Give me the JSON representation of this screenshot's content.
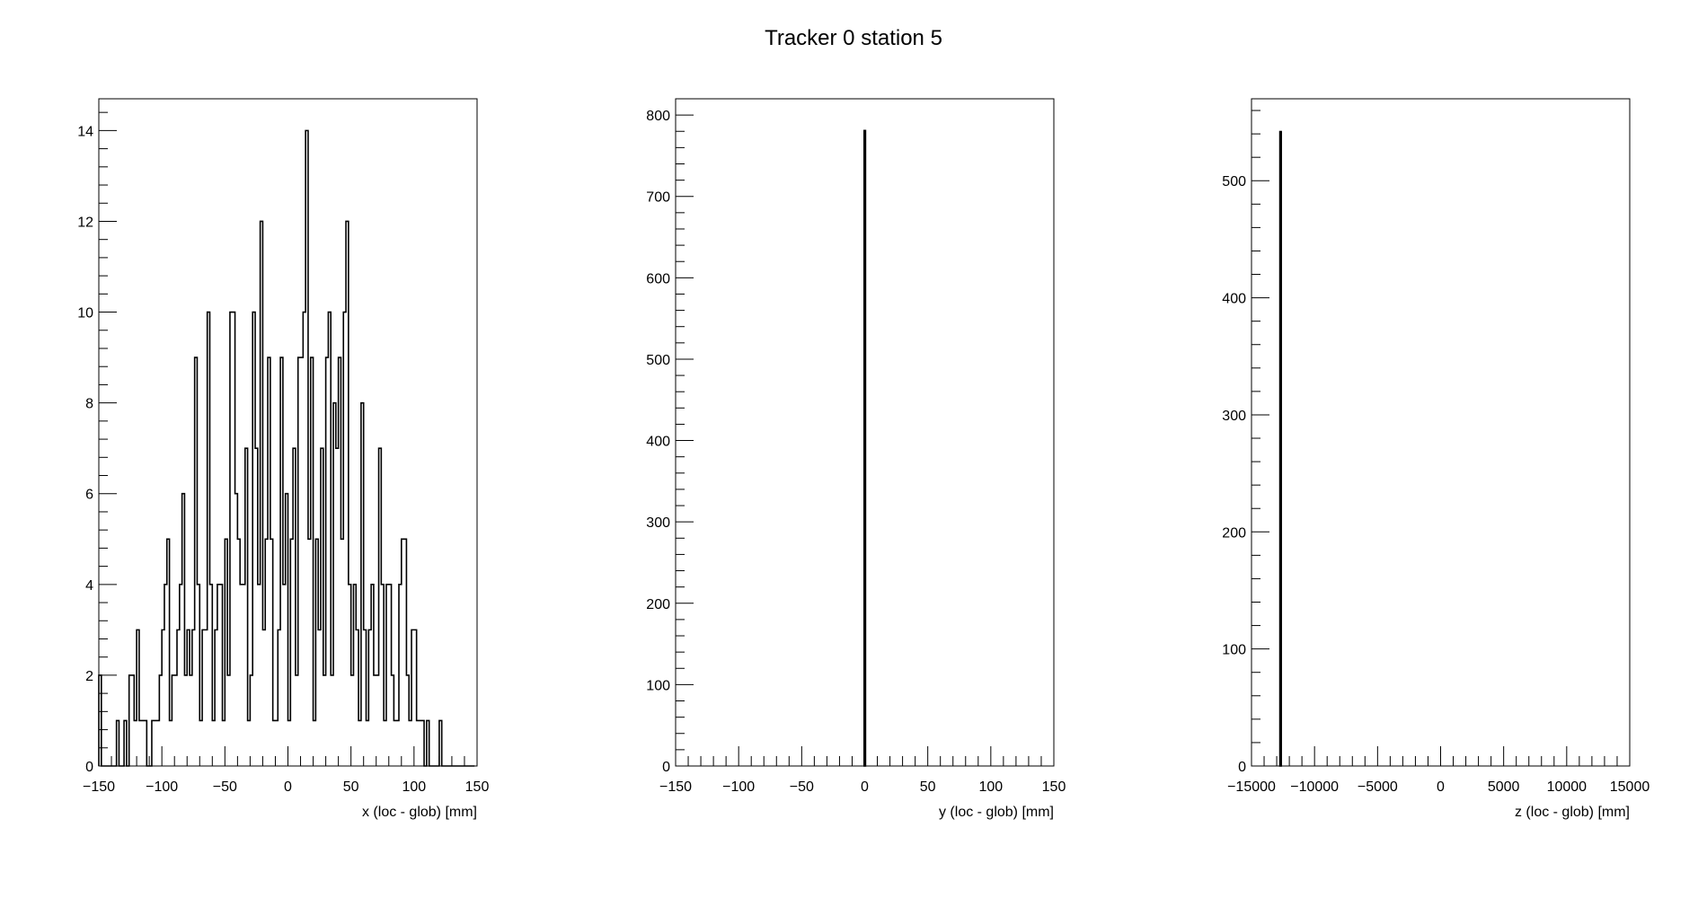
{
  "title": "Tracker 0 station 5",
  "chart_data": [
    {
      "type": "bar",
      "histogram": true,
      "xlabel": "x (loc - glob) [mm]",
      "ylabel": "",
      "xlim": [
        -150,
        150
      ],
      "ylim": [
        0,
        14.7
      ],
      "xticks": [
        -150,
        -100,
        -50,
        0,
        50,
        100,
        150
      ],
      "yticks": [
        0,
        2,
        4,
        6,
        8,
        10,
        12,
        14
      ],
      "x_start": -150,
      "bin_width": 2,
      "values": [
        2,
        0,
        0,
        0,
        0,
        0,
        0,
        1,
        0,
        0,
        1,
        0,
        2,
        2,
        1,
        3,
        1,
        1,
        1,
        0,
        0,
        1,
        1,
        1,
        2,
        3,
        4,
        5,
        1,
        2,
        2,
        3,
        4,
        6,
        2,
        3,
        2,
        3,
        9,
        4,
        1,
        3,
        3,
        10,
        4,
        1,
        3,
        4,
        4,
        1,
        5,
        2,
        10,
        10,
        6,
        5,
        4,
        4,
        7,
        1,
        2,
        10,
        7,
        4,
        12,
        3,
        5,
        9,
        5,
        1,
        1,
        3,
        9,
        4,
        6,
        1,
        5,
        7,
        2,
        9,
        9,
        10,
        14,
        5,
        9,
        1,
        5,
        3,
        7,
        2,
        9,
        10,
        2,
        8,
        7,
        9,
        5,
        10,
        12,
        4,
        2,
        4,
        3,
        1,
        8,
        3,
        1,
        3,
        4,
        2,
        2,
        7,
        4,
        1,
        4,
        4,
        2,
        1,
        1,
        4,
        5,
        5,
        2,
        1,
        3,
        3,
        1,
        1,
        1,
        0,
        1,
        0,
        0,
        0,
        0,
        1,
        0,
        0,
        0,
        0,
        0,
        0,
        0,
        0,
        0,
        0,
        0,
        0,
        0
      ]
    },
    {
      "type": "bar",
      "histogram": true,
      "xlabel": "y (loc - glob) [mm]",
      "ylabel": "",
      "xlim": [
        -150,
        150
      ],
      "ylim": [
        0,
        820
      ],
      "xticks": [
        -150,
        -100,
        -50,
        0,
        50,
        100,
        150
      ],
      "yticks": [
        0,
        100,
        200,
        300,
        400,
        500,
        600,
        700,
        800
      ],
      "bars": [
        {
          "x0": -0.5,
          "x1": 0.5,
          "value": 781
        }
      ]
    },
    {
      "type": "bar",
      "histogram": true,
      "xlabel": "z (loc - glob) [mm]",
      "ylabel": "",
      "xlim": [
        -15000,
        15000
      ],
      "ylim": [
        0,
        570
      ],
      "xticks": [
        -15000,
        -10000,
        -5000,
        0,
        5000,
        10000,
        15000
      ],
      "yticks": [
        0,
        100,
        200,
        300,
        400,
        500
      ],
      "bars": [
        {
          "x0": -12750,
          "x1": -12650,
          "value": 542
        }
      ]
    }
  ]
}
